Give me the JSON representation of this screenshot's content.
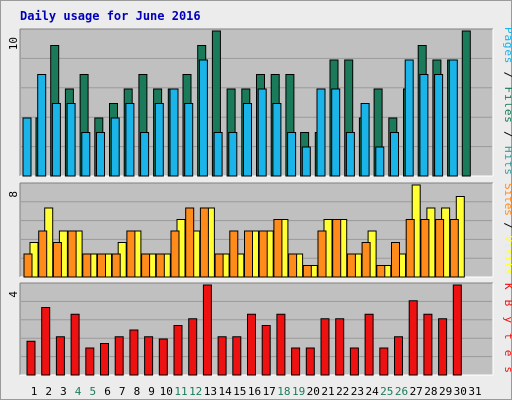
{
  "title": "Daily usage for June 2016",
  "colors": {
    "pages": "#1ab4e8",
    "files": "#1a7a5a",
    "hits": "#3a9a9a",
    "visits": "#ffff33",
    "sites": "#ff8c1a",
    "kbytes": "#ee1111",
    "weekend_day": "#1a7a5a",
    "weekday": "#000000",
    "panel_bg": "#c0c0c0",
    "frame_bg": "#ececec"
  },
  "chart_data": [
    {
      "type": "bar",
      "panel": "hits-files-pages",
      "ymax_label": "10",
      "ylim": [
        0,
        10
      ],
      "grid": true,
      "categories": [
        "1",
        "2",
        "3",
        "4",
        "5",
        "6",
        "7",
        "8",
        "9",
        "10",
        "11",
        "12",
        "13",
        "14",
        "15",
        "16",
        "17",
        "18",
        "19",
        "20",
        "21",
        "22",
        "23",
        "24",
        "25",
        "26",
        "27",
        "28",
        "29",
        "30",
        "31"
      ],
      "series": [
        {
          "name": "Hits",
          "values": [
            4,
            9,
            6,
            7,
            4,
            5,
            6,
            7,
            6,
            6,
            7,
            9,
            10,
            6,
            6,
            7,
            7,
            7,
            3,
            3,
            8,
            8,
            4,
            6,
            4,
            6,
            9,
            8,
            8,
            10,
            0
          ]
        },
        {
          "name": "Files",
          "values": [
            4,
            9,
            6,
            7,
            4,
            5,
            6,
            7,
            6,
            6,
            7,
            9,
            10,
            6,
            6,
            7,
            7,
            7,
            3,
            3,
            8,
            8,
            4,
            6,
            4,
            6,
            9,
            8,
            8,
            10,
            0
          ]
        },
        {
          "name": "Pages",
          "values": [
            4,
            7,
            5,
            5,
            3,
            3,
            4,
            5,
            3,
            5,
            6,
            5,
            8,
            3,
            3,
            5,
            6,
            5,
            3,
            2,
            6,
            6,
            3,
            5,
            2,
            3,
            8,
            7,
            7,
            8,
            0
          ]
        }
      ],
      "legend": [
        "Pages",
        "Files",
        "Hits"
      ],
      "legend_separator": " / "
    },
    {
      "type": "bar",
      "panel": "visits-sites",
      "ymax_label": "8",
      "ylim": [
        0,
        8
      ],
      "grid": true,
      "categories": [
        "1",
        "2",
        "3",
        "4",
        "5",
        "6",
        "7",
        "8",
        "9",
        "10",
        "11",
        "12",
        "13",
        "14",
        "15",
        "16",
        "17",
        "18",
        "19",
        "20",
        "21",
        "22",
        "23",
        "24",
        "25",
        "26",
        "27",
        "28",
        "29",
        "30",
        "31"
      ],
      "series": [
        {
          "name": "Visits",
          "values": [
            3,
            6,
            4,
            4,
            2,
            2,
            3,
            4,
            2,
            2,
            5,
            4,
            6,
            2,
            2,
            4,
            4,
            5,
            2,
            1,
            5,
            5,
            2,
            4,
            1,
            2,
            8,
            6,
            6,
            7,
            0
          ]
        },
        {
          "name": "Sites",
          "values": [
            2,
            4,
            3,
            4,
            2,
            2,
            2,
            4,
            2,
            2,
            4,
            6,
            6,
            2,
            4,
            4,
            4,
            5,
            2,
            1,
            4,
            5,
            2,
            3,
            1,
            3,
            5,
            5,
            5,
            5,
            0
          ]
        }
      ],
      "legend": [
        "Sites",
        "Visits"
      ],
      "legend_separator": " / "
    },
    {
      "type": "bar",
      "panel": "kbytes",
      "ymax_label": "4",
      "ylim": [
        0,
        4
      ],
      "grid": true,
      "categories": [
        "1",
        "2",
        "3",
        "4",
        "5",
        "6",
        "7",
        "8",
        "9",
        "10",
        "11",
        "12",
        "13",
        "14",
        "15",
        "16",
        "17",
        "18",
        "19",
        "20",
        "21",
        "22",
        "23",
        "24",
        "25",
        "26",
        "27",
        "28",
        "29",
        "30",
        "31"
      ],
      "series": [
        {
          "name": "KBytes",
          "values": [
            1.5,
            3.0,
            1.7,
            2.7,
            1.2,
            1.4,
            1.7,
            2.0,
            1.7,
            1.6,
            2.2,
            2.5,
            4.0,
            1.7,
            1.7,
            2.7,
            2.2,
            2.7,
            1.2,
            1.2,
            2.5,
            2.5,
            1.2,
            2.7,
            1.2,
            1.7,
            3.3,
            2.7,
            2.5,
            4.0,
            0
          ]
        }
      ],
      "legend": [
        "KBytes"
      ]
    }
  ],
  "weekend_days": [
    "4",
    "5",
    "11",
    "12",
    "18",
    "19",
    "25",
    "26"
  ]
}
